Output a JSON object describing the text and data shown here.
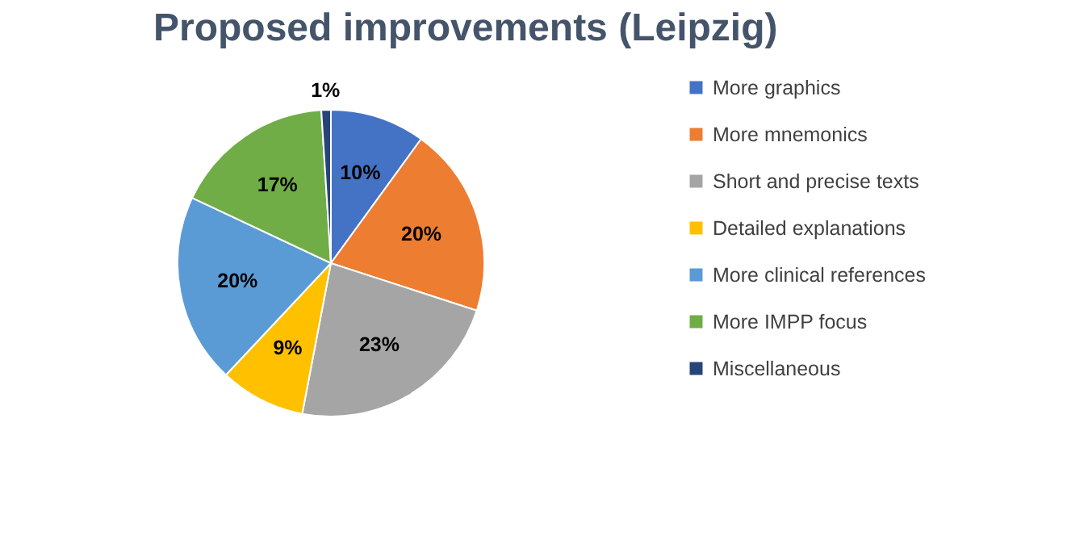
{
  "chart_data": {
    "type": "pie",
    "title": "Proposed improvements (Leipzig)",
    "categories": [
      "More graphics",
      "More mnemonics",
      "Short and precise texts",
      "Detailed explanations",
      "More clinical references",
      "More IMPP focus",
      "Miscellaneous"
    ],
    "values": [
      10,
      20,
      23,
      9,
      20,
      17,
      1
    ],
    "colors": [
      "#4472c4",
      "#ed7d31",
      "#a5a5a5",
      "#ffc000",
      "#5b9bd5",
      "#70ad47",
      "#264478"
    ],
    "value_labels": [
      "10%",
      "20%",
      "23%",
      "9%",
      "20%",
      "17%",
      "1%"
    ],
    "legend": "right"
  }
}
